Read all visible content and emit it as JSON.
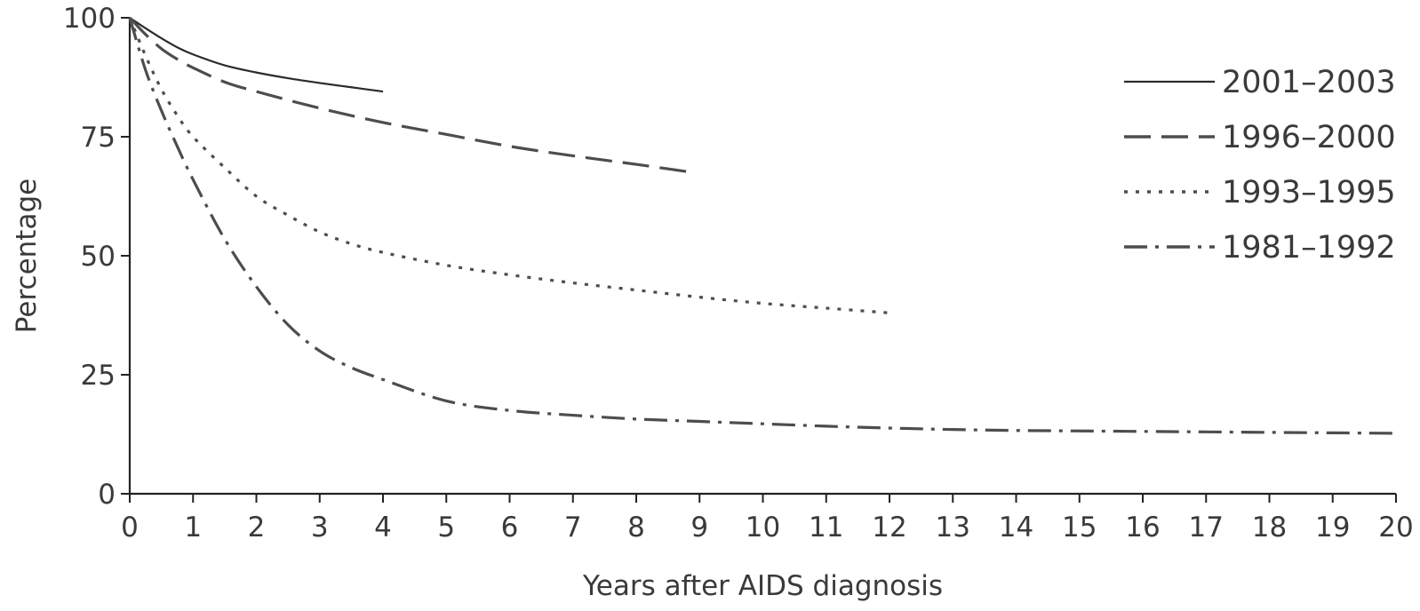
{
  "chart_data": {
    "type": "line",
    "title": "",
    "xlabel": "Years after AIDS diagnosis",
    "ylabel": "Percentage",
    "xlim": [
      0,
      20
    ],
    "ylim": [
      0,
      100
    ],
    "xticks": [
      0,
      1,
      2,
      3,
      4,
      5,
      6,
      7,
      8,
      9,
      10,
      11,
      12,
      13,
      14,
      15,
      16,
      17,
      18,
      19,
      20
    ],
    "yticks": [
      0,
      25,
      50,
      75,
      100
    ],
    "grid": false,
    "legend_position": "top-right",
    "series": [
      {
        "name": "2001–2003",
        "style": "solid",
        "color": "#2b2b2b",
        "x": [
          0,
          0.25,
          0.5,
          0.75,
          1,
          1.5,
          2,
          2.5,
          3,
          3.5,
          4
        ],
        "y": [
          100,
          97.8,
          95.7,
          93.8,
          92.3,
          90,
          88.5,
          87.3,
          86.3,
          85.4,
          84.5
        ]
      },
      {
        "name": "1996–2000",
        "style": "dashed",
        "color": "#4d4d4d",
        "x": [
          0,
          0.25,
          0.5,
          0.75,
          1,
          1.5,
          2,
          3,
          4,
          5,
          6,
          7,
          8,
          8.9
        ],
        "y": [
          100,
          96.5,
          93.5,
          91.3,
          89.5,
          86.5,
          84.5,
          81,
          78,
          75.5,
          73,
          71,
          69.2,
          67.5
        ]
      },
      {
        "name": "1993–1995",
        "style": "dotted",
        "color": "#4d4d4d",
        "x": [
          0,
          0.25,
          0.5,
          0.75,
          1,
          1.5,
          2,
          2.5,
          3,
          3.5,
          4,
          5,
          6,
          7,
          8,
          9,
          10,
          11,
          12
        ],
        "y": [
          100,
          92,
          85,
          79.5,
          75,
          68.5,
          62.5,
          58.5,
          55,
          52.5,
          50.7,
          48,
          46,
          44.3,
          42.8,
          41.3,
          40,
          39,
          38
        ]
      },
      {
        "name": "1981–1992",
        "style": "dashdot",
        "color": "#4d4d4d",
        "x": [
          0,
          0.25,
          0.5,
          0.75,
          1,
          1.5,
          2,
          2.5,
          3,
          3.5,
          4,
          5,
          6,
          7,
          8,
          9,
          10,
          11,
          12,
          13,
          14,
          15,
          16,
          17,
          18,
          19,
          20
        ],
        "y": [
          100,
          89,
          80.5,
          73,
          66,
          53.5,
          43.5,
          35.5,
          30,
          26.5,
          24,
          19.5,
          17.5,
          16.5,
          15.7,
          15.2,
          14.7,
          14.2,
          13.8,
          13.5,
          13.3,
          13.2,
          13.1,
          13,
          12.9,
          12.8,
          12.7
        ]
      }
    ]
  }
}
